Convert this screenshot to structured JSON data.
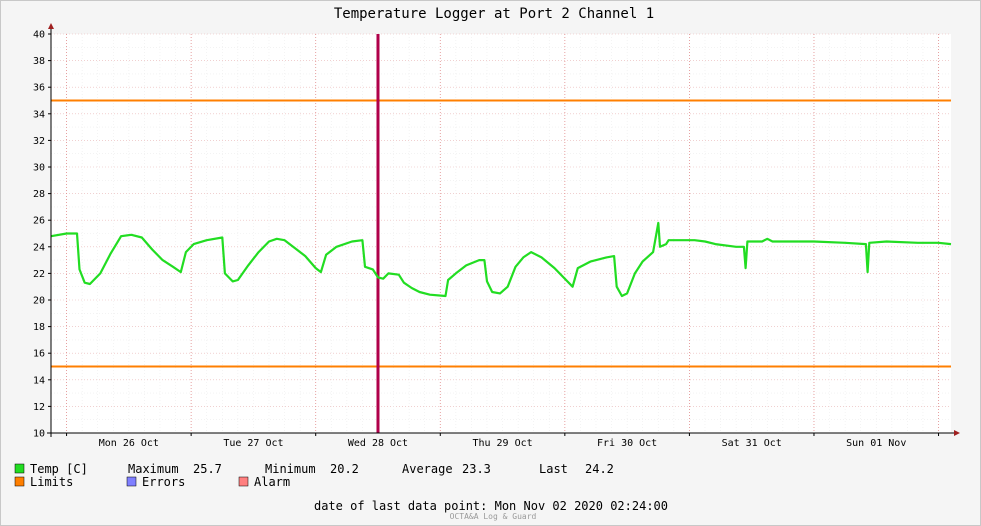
{
  "chart_data": {
    "type": "line",
    "title": "Temperature Logger at Port 2 Channel 1",
    "ylim": [
      10,
      40
    ],
    "yticks": [
      10,
      12,
      14,
      16,
      18,
      20,
      22,
      24,
      26,
      28,
      30,
      32,
      34,
      36,
      38,
      40
    ],
    "xlim": [
      "2020-10-25T21:00",
      "2020-11-02T02:24"
    ],
    "xtick_labels": [
      {
        "label": "Mon 26 Oct",
        "at": "2020-10-26T12:00"
      },
      {
        "label": "Tue 27 Oct",
        "at": "2020-10-27T12:00"
      },
      {
        "label": "Wed 28 Oct",
        "at": "2020-10-28T12:00"
      },
      {
        "label": "Thu 29 Oct",
        "at": "2020-10-29T12:00"
      },
      {
        "label": "Fri 30 Oct",
        "at": "2020-10-30T12:00"
      },
      {
        "label": "Sat 31 Oct",
        "at": "2020-10-31T12:00"
      },
      {
        "label": "Sun 01 Nov",
        "at": "2020-11-01T12:00"
      }
    ],
    "grid": true,
    "series": [
      {
        "name": "Temp [C]",
        "color": "#00e000",
        "points": [
          [
            "2020-10-25T21:00",
            24.8
          ],
          [
            "2020-10-26T00:00",
            25.0
          ],
          [
            "2020-10-26T02:00",
            25.0
          ],
          [
            "2020-10-26T02:30",
            22.3
          ],
          [
            "2020-10-26T03:30",
            21.3
          ],
          [
            "2020-10-26T04:30",
            21.2
          ],
          [
            "2020-10-26T06:30",
            22.0
          ],
          [
            "2020-10-26T08:30",
            23.5
          ],
          [
            "2020-10-26T10:30",
            24.8
          ],
          [
            "2020-10-26T12:30",
            24.9
          ],
          [
            "2020-10-26T14:30",
            24.7
          ],
          [
            "2020-10-26T16:30",
            23.8
          ],
          [
            "2020-10-26T18:30",
            23.0
          ],
          [
            "2020-10-26T20:30",
            22.5
          ],
          [
            "2020-10-26T22:00",
            22.1
          ],
          [
            "2020-10-26T23:00",
            23.6
          ],
          [
            "2020-10-27T00:30",
            24.2
          ],
          [
            "2020-10-27T03:00",
            24.5
          ],
          [
            "2020-10-27T06:00",
            24.7
          ],
          [
            "2020-10-27T06:30",
            22.0
          ],
          [
            "2020-10-27T08:00",
            21.4
          ],
          [
            "2020-10-27T09:00",
            21.5
          ],
          [
            "2020-10-27T11:00",
            22.6
          ],
          [
            "2020-10-27T13:00",
            23.6
          ],
          [
            "2020-10-27T15:00",
            24.4
          ],
          [
            "2020-10-27T16:30",
            24.6
          ],
          [
            "2020-10-27T18:00",
            24.5
          ],
          [
            "2020-10-27T20:00",
            23.9
          ],
          [
            "2020-10-27T22:00",
            23.3
          ],
          [
            "2020-10-28T00:00",
            22.4
          ],
          [
            "2020-10-28T01:00",
            22.1
          ],
          [
            "2020-10-28T02:00",
            23.4
          ],
          [
            "2020-10-28T04:00",
            24.0
          ],
          [
            "2020-10-28T07:00",
            24.4
          ],
          [
            "2020-10-28T09:00",
            24.5
          ],
          [
            "2020-10-28T09:30",
            22.5
          ],
          [
            "2020-10-28T11:00",
            22.3
          ],
          [
            "2020-10-28T12:00",
            21.7
          ],
          [
            "2020-10-28T13:00",
            21.6
          ],
          [
            "2020-10-28T14:00",
            22.0
          ],
          [
            "2020-10-28T16:00",
            21.9
          ],
          [
            "2020-10-28T17:00",
            21.3
          ],
          [
            "2020-10-28T18:30",
            20.9
          ],
          [
            "2020-10-28T20:00",
            20.6
          ],
          [
            "2020-10-28T22:00",
            20.4
          ],
          [
            "2020-10-29T01:00",
            20.3
          ],
          [
            "2020-10-29T01:30",
            21.5
          ],
          [
            "2020-10-29T03:00",
            22.0
          ],
          [
            "2020-10-29T05:00",
            22.6
          ],
          [
            "2020-10-29T07:30",
            23.0
          ],
          [
            "2020-10-29T08:30",
            23.0
          ],
          [
            "2020-10-29T09:00",
            21.4
          ],
          [
            "2020-10-29T10:00",
            20.6
          ],
          [
            "2020-10-29T11:30",
            20.5
          ],
          [
            "2020-10-29T13:00",
            21.0
          ],
          [
            "2020-10-29T14:30",
            22.5
          ],
          [
            "2020-10-29T16:00",
            23.2
          ],
          [
            "2020-10-29T17:30",
            23.6
          ],
          [
            "2020-10-29T19:30",
            23.2
          ],
          [
            "2020-10-29T22:00",
            22.4
          ],
          [
            "2020-10-30T00:30",
            21.4
          ],
          [
            "2020-10-30T01:30",
            21.0
          ],
          [
            "2020-10-30T02:30",
            22.4
          ],
          [
            "2020-10-30T05:00",
            22.9
          ],
          [
            "2020-10-30T08:00",
            23.2
          ],
          [
            "2020-10-30T09:30",
            23.3
          ],
          [
            "2020-10-30T10:00",
            21.0
          ],
          [
            "2020-10-30T11:00",
            20.3
          ],
          [
            "2020-10-30T12:00",
            20.5
          ],
          [
            "2020-10-30T13:30",
            22.0
          ],
          [
            "2020-10-30T15:00",
            22.9
          ],
          [
            "2020-10-30T17:00",
            23.6
          ],
          [
            "2020-10-30T18:00",
            25.8
          ],
          [
            "2020-10-30T18:20",
            24.0
          ],
          [
            "2020-10-30T19:30",
            24.2
          ],
          [
            "2020-10-30T20:00",
            24.5
          ],
          [
            "2020-10-31T01:00",
            24.5
          ],
          [
            "2020-10-31T03:00",
            24.4
          ],
          [
            "2020-10-31T05:00",
            24.2
          ],
          [
            "2020-10-31T09:00",
            24.0
          ],
          [
            "2020-10-31T10:30",
            24.0
          ],
          [
            "2020-10-31T10:50",
            22.4
          ],
          [
            "2020-10-31T11:10",
            24.4
          ],
          [
            "2020-10-31T14:00",
            24.4
          ],
          [
            "2020-10-31T15:00",
            24.6
          ],
          [
            "2020-10-31T16:00",
            24.4
          ],
          [
            "2020-11-01T00:00",
            24.4
          ],
          [
            "2020-11-01T06:00",
            24.3
          ],
          [
            "2020-11-01T10:00",
            24.2
          ],
          [
            "2020-11-01T10:20",
            22.1
          ],
          [
            "2020-11-01T10:40",
            24.3
          ],
          [
            "2020-11-01T14:00",
            24.4
          ],
          [
            "2020-11-01T20:00",
            24.3
          ],
          [
            "2020-11-02T00:00",
            24.3
          ],
          [
            "2020-11-02T02:24",
            24.2
          ]
        ]
      }
    ],
    "limits": {
      "color": "#ff7f00",
      "values": [
        35,
        15
      ]
    },
    "marker": {
      "color": "#b0004a",
      "at": "2020-10-28T12:00"
    },
    "legend": {
      "temp_label": "Temp [C]",
      "max_label": "Maximum",
      "max_value": "25.7",
      "min_label": "Minimum",
      "min_value": "20.2",
      "avg_label": "Average",
      "avg_value": "23.3",
      "last_label": "Last",
      "last_value": "24.2",
      "limits_label": "Limits",
      "errors_label": "Errors",
      "alarm_label": "Alarm"
    },
    "footer": "date of last data point:  Mon Nov 02 2020 02:24:00",
    "watermark": "OCTA&A Log & Guard"
  },
  "colors": {
    "temp": "#22dd22",
    "limits": "#ff7f00",
    "errors": "#7f7fff",
    "alarm": "#ff7f7f",
    "marker": "#b0004a"
  }
}
